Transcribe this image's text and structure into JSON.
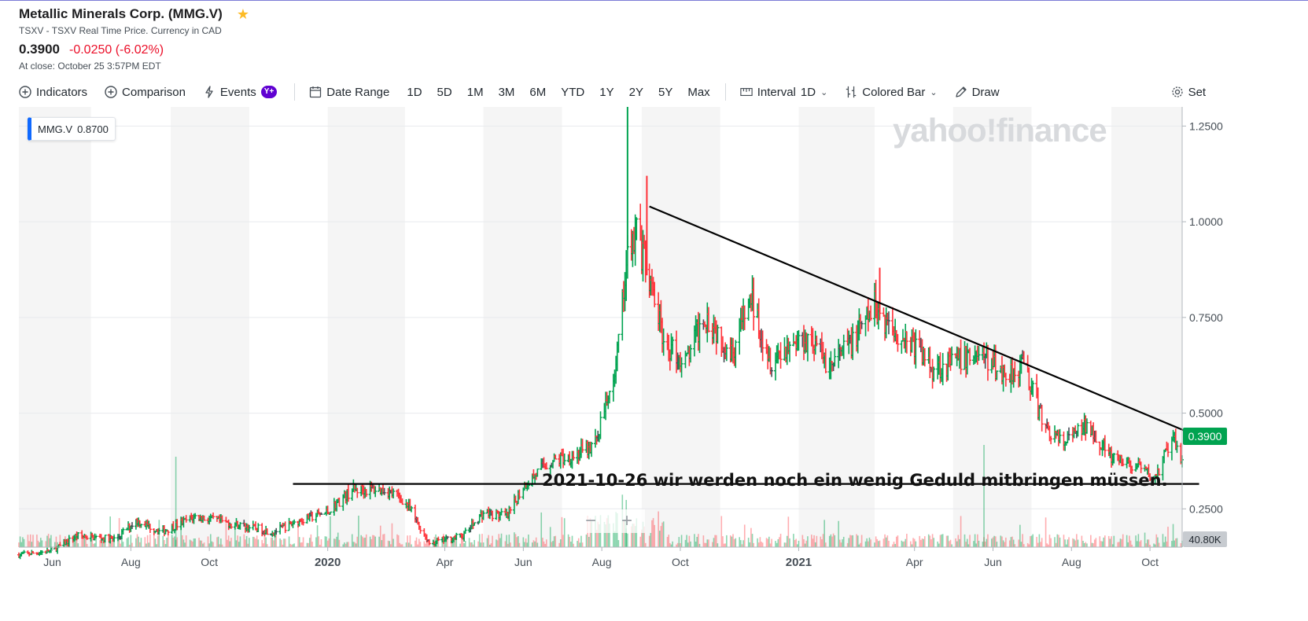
{
  "header": {
    "title": "Metallic Minerals Corp. (MMG.V)",
    "subtitle": "TSXV - TSXV Real Time Price. Currency in CAD",
    "price": "0.3900",
    "change": "-0.0250 (-6.02%)",
    "close_info": "At close: October 25 3:57PM EDT"
  },
  "toolbar": {
    "indicators": "Indicators",
    "comparison": "Comparison",
    "events": "Events",
    "events_badge": "Y+",
    "date_range": "Date Range",
    "ranges": [
      "1D",
      "5D",
      "1M",
      "3M",
      "6M",
      "YTD",
      "1Y",
      "2Y",
      "5Y",
      "Max"
    ],
    "interval_label": "Interval",
    "interval_value": "1D",
    "chart_type": "Colored Bar",
    "draw": "Draw",
    "settings": "Set"
  },
  "legend": {
    "symbol": "MMG.V",
    "value": "0.8700"
  },
  "watermark": "yahoo!finance",
  "annotation": "2021-10-26  wir werden noch ein wenig Geduld mitbringen müssen.",
  "price_tag": "0.3900",
  "volume_tag": "40.80K",
  "colors": {
    "up": "#00a350",
    "down": "#ff333a",
    "neutral": "#464e56",
    "trendline": "#000000",
    "accent": "#0f69ff"
  },
  "chart_data": {
    "type": "bar",
    "subtype": "ohlc-colored-bar",
    "x_range": [
      "2019-05-06",
      "2021-10-26"
    ],
    "ylim": [
      0.15,
      1.3
    ],
    "y_ticks": [
      "1.2500",
      "1.0000",
      "0.7500",
      "0.5000",
      "0.2500"
    ],
    "y_tick_values": [
      1.25,
      1.0,
      0.75,
      0.5,
      0.25
    ],
    "x_ticks": [
      {
        "label": "Jun",
        "date": "2019-06-01",
        "bold": false
      },
      {
        "label": "Aug",
        "date": "2019-08-01",
        "bold": false
      },
      {
        "label": "Oct",
        "date": "2019-10-01",
        "bold": false
      },
      {
        "label": "2020",
        "date": "2020-01-01",
        "bold": true
      },
      {
        "label": "Apr",
        "date": "2020-04-01",
        "bold": false
      },
      {
        "label": "Jun",
        "date": "2020-06-01",
        "bold": false
      },
      {
        "label": "Aug",
        "date": "2020-08-01",
        "bold": false
      },
      {
        "label": "Oct",
        "date": "2020-10-01",
        "bold": false
      },
      {
        "label": "2021",
        "date": "2021-01-01",
        "bold": true
      },
      {
        "label": "Apr",
        "date": "2021-04-01",
        "bold": false
      },
      {
        "label": "Jun",
        "date": "2021-06-01",
        "bold": false
      },
      {
        "label": "Aug",
        "date": "2021-08-01",
        "bold": false
      },
      {
        "label": "Oct",
        "date": "2021-10-01",
        "bold": false
      }
    ],
    "price_path": [
      [
        "2019-05-06",
        0.13
      ],
      [
        "2019-06-01",
        0.14
      ],
      [
        "2019-06-20",
        0.18
      ],
      [
        "2019-07-20",
        0.17
      ],
      [
        "2019-08-05",
        0.22
      ],
      [
        "2019-08-25",
        0.19
      ],
      [
        "2019-09-20",
        0.23
      ],
      [
        "2019-10-20",
        0.21
      ],
      [
        "2019-11-20",
        0.19
      ],
      [
        "2019-12-10",
        0.22
      ],
      [
        "2019-12-31",
        0.24
      ],
      [
        "2020-01-20",
        0.3
      ],
      [
        "2020-02-15",
        0.3
      ],
      [
        "2020-03-01",
        0.27
      ],
      [
        "2020-03-20",
        0.16
      ],
      [
        "2020-04-15",
        0.18
      ],
      [
        "2020-05-01",
        0.24
      ],
      [
        "2020-05-20",
        0.23
      ],
      [
        "2020-06-01",
        0.31
      ],
      [
        "2020-06-20",
        0.37
      ],
      [
        "2020-07-10",
        0.39
      ],
      [
        "2020-07-25",
        0.41
      ],
      [
        "2020-08-05",
        0.52
      ],
      [
        "2020-08-15",
        0.7
      ],
      [
        "2020-08-20",
        0.92
      ],
      [
        "2020-08-28",
        0.98
      ],
      [
        "2020-09-05",
        0.86
      ],
      [
        "2020-09-20",
        0.68
      ],
      [
        "2020-10-05",
        0.63
      ],
      [
        "2020-10-20",
        0.76
      ],
      [
        "2020-11-10",
        0.66
      ],
      [
        "2020-11-25",
        0.8
      ],
      [
        "2020-12-10",
        0.64
      ],
      [
        "2020-12-25",
        0.68
      ],
      [
        "2021-01-10",
        0.7
      ],
      [
        "2021-01-25",
        0.62
      ],
      [
        "2021-02-15",
        0.7
      ],
      [
        "2021-03-01",
        0.78
      ],
      [
        "2021-03-15",
        0.72
      ],
      [
        "2021-03-31",
        0.68
      ],
      [
        "2021-04-15",
        0.62
      ],
      [
        "2021-05-01",
        0.63
      ],
      [
        "2021-05-20",
        0.66
      ],
      [
        "2021-06-10",
        0.6
      ],
      [
        "2021-06-25",
        0.63
      ],
      [
        "2021-07-10",
        0.47
      ],
      [
        "2021-07-25",
        0.42
      ],
      [
        "2021-08-15",
        0.47
      ],
      [
        "2021-09-01",
        0.38
      ],
      [
        "2021-09-20",
        0.36
      ],
      [
        "2021-10-05",
        0.33
      ],
      [
        "2021-10-18",
        0.43
      ],
      [
        "2021-10-25",
        0.39
      ]
    ],
    "spikes": [
      {
        "date": "2020-08-21",
        "high": 1.3
      },
      {
        "date": "2020-09-05",
        "high": 1.12
      },
      {
        "date": "2021-03-05",
        "high": 0.88
      }
    ],
    "trendlines": [
      {
        "from": [
          "2020-09-07",
          1.04
        ],
        "to": [
          "2021-10-30",
          0.43
        ]
      },
      {
        "from": [
          "2019-12-05",
          0.315
        ],
        "to": [
          "2021-10-30",
          0.315
        ]
      }
    ]
  }
}
